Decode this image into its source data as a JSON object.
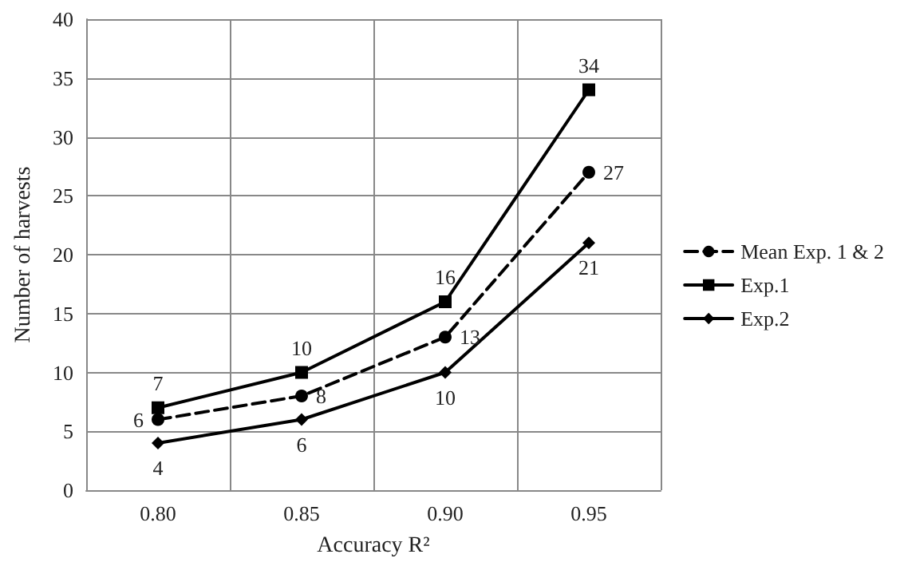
{
  "chart_data": {
    "type": "line",
    "xlabel": "Accuracy R²",
    "ylabel": "Number of harvests",
    "categories": [
      "0.80",
      "0.85",
      "0.90",
      "0.95"
    ],
    "series": [
      {
        "name": "Mean Exp. 1 & 2",
        "color": "#000000",
        "marker": "circle",
        "line_style": "dashed",
        "values": [
          6,
          8,
          13,
          27
        ]
      },
      {
        "name": "Exp.1",
        "color": "#000000",
        "marker": "square",
        "line_style": "solid",
        "values": [
          7,
          10,
          16,
          34
        ]
      },
      {
        "name": "Exp.2",
        "color": "#000000",
        "marker": "diamond",
        "line_style": "solid",
        "values": [
          4,
          6,
          10,
          21
        ]
      }
    ],
    "ylim": [
      0,
      40
    ],
    "yticks": [
      0,
      5,
      10,
      15,
      20,
      25,
      30,
      35,
      40
    ],
    "grid": true,
    "legend": "right",
    "data_labels": true
  }
}
